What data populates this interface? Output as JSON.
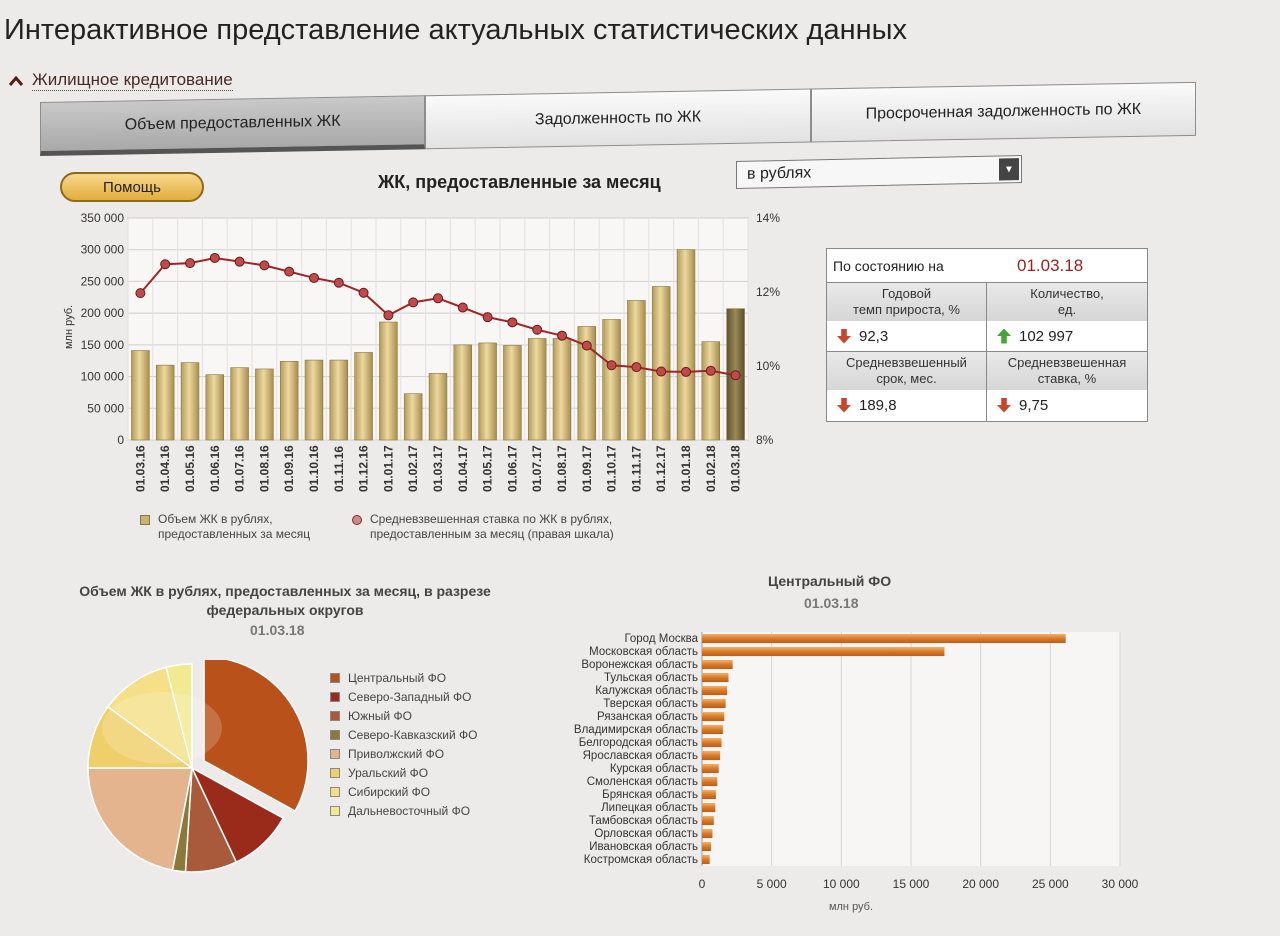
{
  "page": {
    "title": "Интерактивное представление актуальных статистических данных",
    "section": "Жилищное кредитование"
  },
  "tabs": [
    {
      "label": "Объем предоставленных ЖК",
      "active": true
    },
    {
      "label": "Задолженность по ЖК",
      "active": false
    },
    {
      "label": "Просроченная задолженность по ЖК",
      "active": false
    }
  ],
  "toolbar": {
    "help_label": "Помощь",
    "chart_title": "ЖК, предоставленные за месяц",
    "currency_selected": "в рублях"
  },
  "legend_main": {
    "bars_line1": "Объем ЖК в рублях,",
    "bars_line2": "предоставленных за месяц",
    "line_line1": "Средневзвешенная ставка по ЖК  в рублях,",
    "line_line2": "предоставленным за месяц (правая шкала)"
  },
  "stats": {
    "as_of_label": "По состоянию на",
    "date": "01.03.18",
    "growth_label_1": "Годовой",
    "growth_label_2": "темп прироста, %",
    "growth_value": "92,3",
    "count_label_1": "Количество,",
    "count_label_2": "ед.",
    "count_value": "102 997",
    "term_label_1": "Средневзвешенный",
    "term_label_2": "срок, мес.",
    "term_value": "189,8",
    "rate_label_1": "Средневзвешенная",
    "rate_label_2": "ставка, %",
    "rate_value": "9,75"
  },
  "pie": {
    "title": "Объем ЖК в рублях, предоставленных за месяц, в разрезе федеральных округов",
    "date": "01.03.18"
  },
  "hbar": {
    "title": "Центральный ФО",
    "date": "01.03.18"
  },
  "chart_data": [
    {
      "type": "bar",
      "categories": [
        "01.03.16",
        "01.04.16",
        "01.05.16",
        "01.06.16",
        "01.07.16",
        "01.08.16",
        "01.09.16",
        "01.10.16",
        "01.11.16",
        "01.12.16",
        "01.01.17",
        "01.02.17",
        "01.03.17",
        "01.04.17",
        "01.05.17",
        "01.06.17",
        "01.07.17",
        "01.08.17",
        "01.09.17",
        "01.10.17",
        "01.11.17",
        "01.12.17",
        "01.01.18",
        "01.02.18",
        "01.03.18"
      ],
      "series": [
        {
          "name": "Объем ЖК в рублях, предоставленных за месяц",
          "axis": "left",
          "values": [
            141000,
            118000,
            122000,
            103000,
            114000,
            112000,
            124000,
            126000,
            126000,
            138000,
            186000,
            73000,
            105000,
            150000,
            153000,
            149000,
            160000,
            160000,
            179000,
            190000,
            220000,
            242000,
            300000,
            155000,
            207000
          ]
        },
        {
          "name": "Средневзвешенная ставка по ЖК  в рублях, предоставленным за месяц (правая шкала)",
          "axis": "right",
          "type": "line",
          "values": [
            11.97,
            12.75,
            12.78,
            12.92,
            12.82,
            12.72,
            12.55,
            12.38,
            12.25,
            11.98,
            11.37,
            11.72,
            11.83,
            11.58,
            11.32,
            11.18,
            10.98,
            10.82,
            10.55,
            10.02,
            9.97,
            9.85,
            9.84,
            9.87,
            9.75
          ]
        }
      ],
      "ylabel": "млн руб.",
      "ylim": [
        0,
        350000
      ],
      "yticks": [
        "0",
        "50 000",
        "100 000",
        "150 000",
        "200 000",
        "250 000",
        "300 000",
        "350 000"
      ],
      "y2lim": [
        8,
        14
      ],
      "y2ticks": [
        "8%",
        "10%",
        "12%",
        "14%"
      ],
      "grid": true,
      "legend": "bottom",
      "colors": {
        "bar": "#d2b978",
        "bar_last": "#8a7a4a",
        "line": "#a02525"
      }
    },
    {
      "type": "pie",
      "labels": [
        "Центральный ФО",
        "Северо-Западный ФО",
        "Южный ФО",
        "Северо-Кавказский ФО",
        "Приволжский ФО",
        "Уральский ФО",
        "Сибирский ФО",
        "Дальневосточный ФО"
      ],
      "values": [
        33,
        10,
        8,
        2,
        22,
        10,
        11,
        4
      ],
      "colors": [
        "#b8521a",
        "#9a2a1a",
        "#a85a3a",
        "#8a7a3a",
        "#e3b48e",
        "#efcf6a",
        "#f5e088",
        "#f2ea90"
      ]
    },
    {
      "type": "bar",
      "orientation": "horizontal",
      "categories": [
        "Город Москва",
        "Московская область",
        "Воронежская область",
        "Тульская область",
        "Калужская область",
        "Тверская область",
        "Рязанская область",
        "Владимирская область",
        "Белгородская область",
        "Ярославская область",
        "Курская область",
        "Смоленская область",
        "Брянская область",
        "Липецкая область",
        "Тамбовская область",
        "Орловская область",
        "Ивановская область",
        "Костромская область"
      ],
      "values": [
        26100,
        17400,
        2200,
        1900,
        1800,
        1700,
        1600,
        1500,
        1400,
        1300,
        1200,
        1100,
        1000,
        950,
        850,
        750,
        650,
        550
      ],
      "xlabel": "млн руб.",
      "xlim": [
        0,
        30000
      ],
      "xticks": [
        "0",
        "5 000",
        "10 000",
        "15 000",
        "20 000",
        "25 000",
        "30 000"
      ],
      "colors": {
        "bar": "#e08a3a"
      }
    }
  ]
}
